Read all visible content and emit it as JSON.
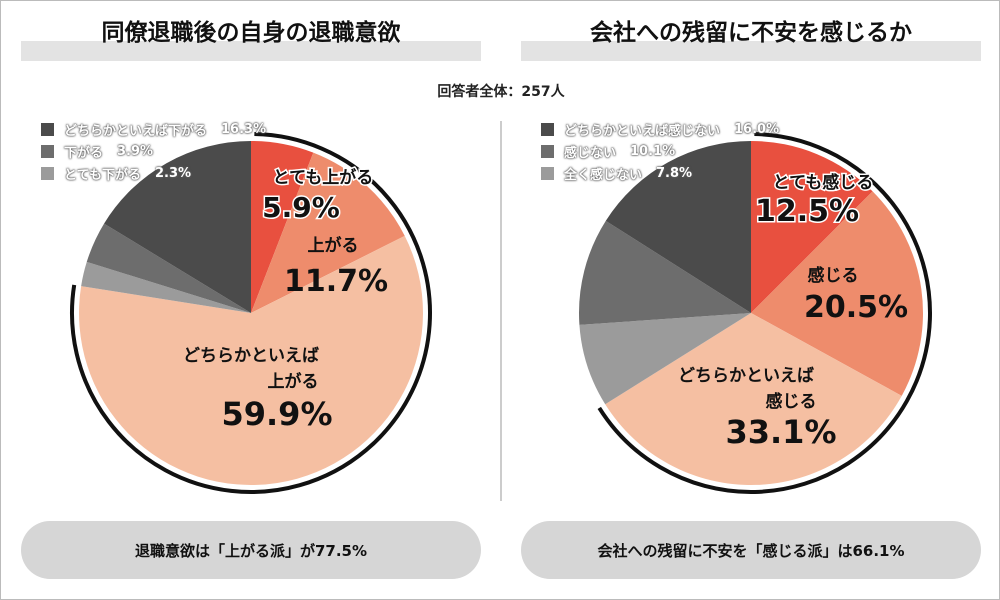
{
  "respondents": "回答者全体：257人",
  "chart_data": [
    {
      "type": "pie",
      "title": "同僚退職後の自身の退職意欲",
      "start": "top",
      "direction": "clockwise",
      "slices": [
        {
          "label": "とても上がる",
          "value": 5.9,
          "color": "#e8503f"
        },
        {
          "label": "上がる",
          "value": 11.7,
          "color": "#ee8c6c"
        },
        {
          "label": "どちらかといえば上がる",
          "value": 59.9,
          "color": "#f5bfa2"
        },
        {
          "label": "とても下がる",
          "value": 2.3,
          "color": "#9b9b9b"
        },
        {
          "label": "下がる",
          "value": 3.9,
          "color": "#6d6d6d"
        },
        {
          "label": "どちらかといえば下がる",
          "value": 16.3,
          "color": "#4b4b4b"
        }
      ],
      "slice_labels": [
        [
          "とても上がる",
          "5.9%"
        ],
        [
          "上がる",
          "11.7%"
        ],
        [
          "どちらかといえば",
          "上がる",
          "59.9%"
        ]
      ],
      "legend": [
        {
          "label": "どちらかといえば下がる",
          "pct": "16.3%",
          "color": "#4b4b4b"
        },
        {
          "label": "下がる",
          "pct": "3.9%",
          "color": "#6d6d6d"
        },
        {
          "label": "とても下がる",
          "pct": "2.3%",
          "color": "#9b9b9b"
        }
      ],
      "highlight_total": 77.5,
      "summary": "退職意欲は「上がる派」が77.5%"
    },
    {
      "type": "pie",
      "title": "会社への残留に不安を感じるか",
      "start": "top",
      "direction": "clockwise",
      "slices": [
        {
          "label": "とても感じる",
          "value": 12.5,
          "color": "#e8503f"
        },
        {
          "label": "感じる",
          "value": 20.5,
          "color": "#ee8c6c"
        },
        {
          "label": "どちらかといえば感じる",
          "value": 33.1,
          "color": "#f5bfa2"
        },
        {
          "label": "全く感じない",
          "value": 7.8,
          "color": "#9b9b9b"
        },
        {
          "label": "感じない",
          "value": 10.1,
          "color": "#6d6d6d"
        },
        {
          "label": "どちらかといえば感じない",
          "value": 16.0,
          "color": "#4b4b4b"
        }
      ],
      "slice_labels": [
        [
          "とても感じる",
          "12.5%"
        ],
        [
          "感じる",
          "20.5%"
        ],
        [
          "どちらかといえば",
          "感じる",
          "33.1%"
        ]
      ],
      "legend": [
        {
          "label": "どちらかといえば感じない",
          "pct": "16.0%",
          "color": "#4b4b4b"
        },
        {
          "label": "感じない",
          "pct": "10.1%",
          "color": "#6d6d6d"
        },
        {
          "label": "全く感じない",
          "pct": "7.8%",
          "color": "#9b9b9b"
        }
      ],
      "highlight_total": 66.1,
      "summary": "会社への残留に不安を「感じる派」は66.1%"
    }
  ]
}
